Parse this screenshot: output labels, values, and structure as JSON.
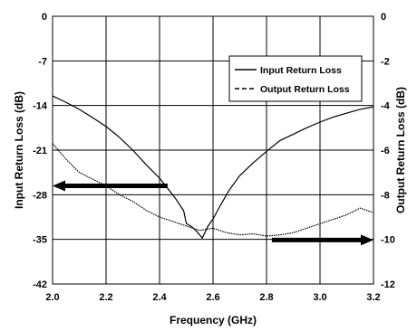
{
  "chart_data": {
    "type": "line",
    "title": "",
    "xlabel": "Frequency (GHz)",
    "ylabel": "Input Return Loss (dB)",
    "y2label": "Output Return Loss (dB)",
    "xlim": [
      2.0,
      3.2
    ],
    "ylim": [
      -42,
      0
    ],
    "y2lim": [
      -12,
      0
    ],
    "x_ticks": [
      "2.0",
      "2.2",
      "2.4",
      "2.6",
      "2.8",
      "3.0",
      "3.2"
    ],
    "y_ticks": [
      "0",
      "-7",
      "-14",
      "-21",
      "-28",
      "-35",
      "-42"
    ],
    "y2_ticks": [
      "0",
      "-2",
      "-4",
      "-6",
      "-8",
      "-10",
      "-12"
    ],
    "grid": true,
    "legend_position": "top-right",
    "series": [
      {
        "name": "Input Return Loss",
        "axis": "left",
        "style": "solid",
        "x": [
          2.0,
          2.05,
          2.1,
          2.15,
          2.2,
          2.25,
          2.3,
          2.35,
          2.4,
          2.43,
          2.46,
          2.49,
          2.5,
          2.52,
          2.54,
          2.56,
          2.58,
          2.6,
          2.63,
          2.66,
          2.7,
          2.75,
          2.8,
          2.85,
          2.9,
          2.95,
          3.0,
          3.05,
          3.1,
          3.15,
          3.2
        ],
        "y": [
          -12.5,
          -13.5,
          -14.6,
          -15.9,
          -17.3,
          -19.0,
          -21.0,
          -23.3,
          -25.4,
          -27.0,
          -28.6,
          -30.5,
          -32.5,
          -33.0,
          -33.8,
          -34.8,
          -33.0,
          -31.8,
          -29.5,
          -27.3,
          -25.0,
          -23.0,
          -21.2,
          -19.5,
          -18.5,
          -17.5,
          -16.6,
          -15.8,
          -15.2,
          -14.6,
          -14.2
        ]
      },
      {
        "name": "Output Return Loss",
        "axis": "right",
        "style": "dashed",
        "x": [
          2.0,
          2.05,
          2.1,
          2.15,
          2.2,
          2.25,
          2.3,
          2.35,
          2.4,
          2.45,
          2.5,
          2.55,
          2.6,
          2.65,
          2.7,
          2.75,
          2.8,
          2.85,
          2.9,
          2.95,
          3.0,
          3.05,
          3.1,
          3.15,
          3.2
        ],
        "y": [
          -5.7,
          -6.4,
          -7.0,
          -7.3,
          -7.6,
          -8.0,
          -8.3,
          -8.7,
          -9.0,
          -9.2,
          -9.4,
          -9.6,
          -9.5,
          -9.7,
          -9.8,
          -9.75,
          -9.85,
          -9.8,
          -9.7,
          -9.5,
          -9.3,
          -9.1,
          -8.9,
          -8.6,
          -8.8
        ]
      }
    ],
    "annotations": [
      {
        "type": "arrow",
        "direction": "left",
        "points_to_axis": "left",
        "x_from": 2.43,
        "x_to": 2.0,
        "y": -26.6,
        "y_axis": "left"
      },
      {
        "type": "arrow",
        "direction": "right",
        "points_to_axis": "right",
        "x_from": 2.82,
        "x_to": 3.2,
        "y": -35.1,
        "y_axis": "left"
      }
    ],
    "colors": {
      "lines": "#000000",
      "grid": "#000000",
      "background": "#ffffff"
    }
  }
}
